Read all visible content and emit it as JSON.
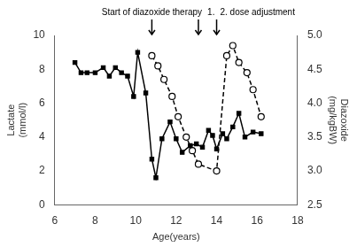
{
  "chart_data": {
    "type": "line",
    "xlabel": "Age(years)",
    "ylabel": "Lactate\n(mmol/l)",
    "y2label": "Diazoxide\n(mg/kgBW)",
    "xlim": [
      6,
      18
    ],
    "xticks": [
      6,
      8,
      10,
      12,
      14,
      16,
      18
    ],
    "ylim": [
      0,
      10
    ],
    "yticks": [
      0,
      2,
      4,
      6,
      8,
      10
    ],
    "y2lim": [
      2.5,
      5.0
    ],
    "y2ticks": [
      2.5,
      {
        "value": 3.0,
        "label": "3.0"
      },
      3.5,
      {
        "value": 4.0,
        "label": "4.0"
      },
      4.5,
      {
        "value": 5.0,
        "label": "5.0"
      }
    ],
    "grid": false,
    "series": [
      {
        "x": [
          7.0,
          7.3,
          7.6,
          8.0,
          8.4,
          8.7,
          9.0,
          9.3,
          9.6,
          9.9,
          10.1,
          10.5,
          10.8,
          11.0,
          11.3,
          11.7,
          12.0,
          12.3,
          12.7,
          13.0,
          13.3,
          13.6,
          13.8,
          14.0,
          14.3,
          14.5,
          14.8,
          15.1,
          15.4,
          15.8,
          16.2
        ],
        "values": [
          8.4,
          7.8,
          7.8,
          7.8,
          8.1,
          7.6,
          8.1,
          7.8,
          7.6,
          6.4,
          9.0,
          6.6,
          2.7,
          1.6,
          3.9,
          4.9,
          3.9,
          3.1,
          3.5,
          3.6,
          3.4,
          4.4,
          4.1,
          3.3,
          4.2,
          3.9,
          4.6,
          5.4,
          4.0,
          4.3,
          4.2
        ],
        "color": "black",
        "marker": "filled_square",
        "line_style": "solid",
        "axis": "y"
      },
      {
        "x": [
          10.8,
          11.1,
          11.4,
          11.8,
          12.1,
          12.5,
          12.8,
          13.1,
          14.0,
          14.5,
          14.8,
          15.1,
          15.5,
          15.8,
          16.2
        ],
        "values": [
          4.7,
          4.55,
          4.35,
          4.1,
          3.8,
          3.5,
          3.3,
          3.1,
          3.0,
          4.7,
          4.85,
          4.6,
          4.45,
          4.2,
          3.8
        ],
        "color": "black",
        "marker": "open_circle",
        "line_style": "dashed",
        "axis": "y2"
      }
    ],
    "annotations": [
      {
        "x": 10.8,
        "text": "Start of diazoxide therapy"
      },
      {
        "x": 13.1,
        "text": "1."
      },
      {
        "x": 14.0,
        "text": "2. dose adjustment"
      }
    ]
  }
}
